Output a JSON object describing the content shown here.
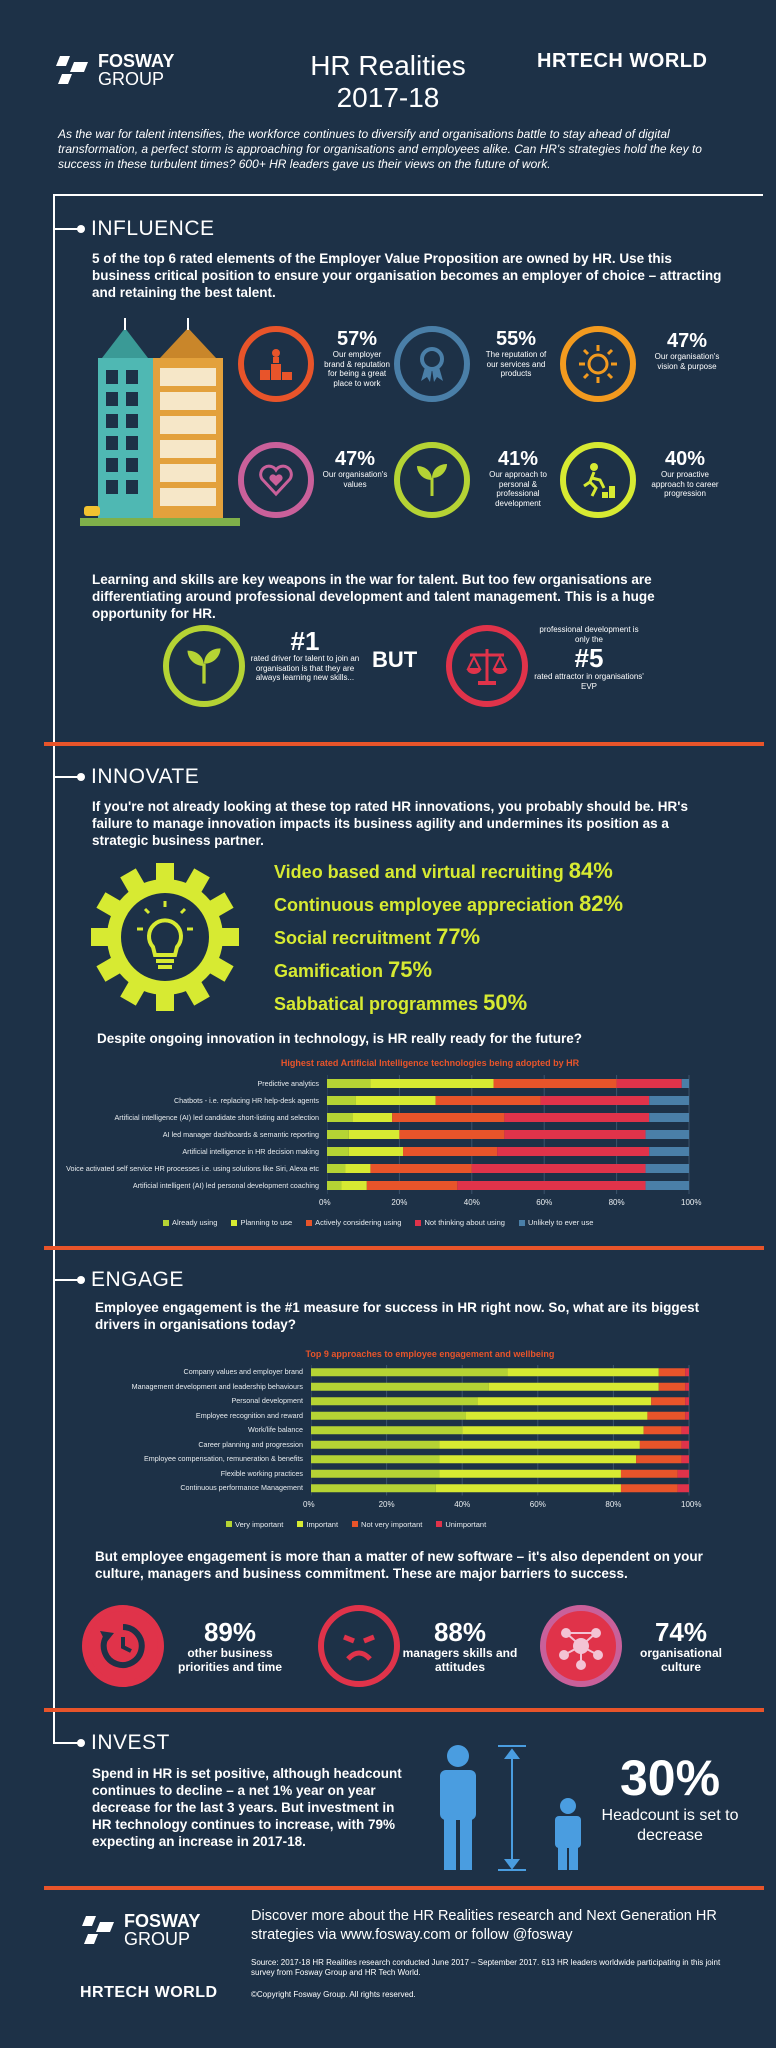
{
  "header": {
    "brand_name_line1": "FOSWAY",
    "brand_name_line2": "GROUP",
    "title_line1": "HR Realities",
    "title_line2": "2017-18",
    "partner_logo": "HRTECH WORLD",
    "intro": "As the war for talent intensifies, the workforce continues to diversify and organisations battle to stay ahead of digital transformation, a perfect storm is approaching for organisations and employees alike. Can HR's strategies hold the key to success in these turbulent times? 600+ HR leaders gave us their views on the future of work."
  },
  "influence": {
    "heading": "INFLUENCE",
    "para": "5 of the top 6 rated elements of the Employer Value Proposition are owned by HR. Use this business critical position to ensure your organisation becomes an employer of choice – attracting and retaining the best talent.",
    "stats": [
      {
        "pct": "57%",
        "desc": "Our employer brand & reputation for being a great place to work",
        "icon": "podium-icon",
        "color": "#e8542a"
      },
      {
        "pct": "55%",
        "desc": "The reputation of our services and products",
        "icon": "award-ribbon-icon",
        "color": "#4a7fa8"
      },
      {
        "pct": "47%",
        "desc": "Our organisation's vision & purpose",
        "icon": "sun-icon",
        "color": "#f29a1f"
      },
      {
        "pct": "47%",
        "desc": "Our organisation's values",
        "icon": "heart-icon",
        "color": "#c9609a"
      },
      {
        "pct": "41%",
        "desc": "Our approach to personal & professional development",
        "icon": "sprout-icon",
        "color": "#b5d334"
      },
      {
        "pct": "40%",
        "desc": "Our proactive approach to career progression",
        "icon": "runner-steps-icon",
        "color": "#d7ea32"
      }
    ],
    "para2": "Learning and skills are key weapons in the war for talent. But too few organisations are differentiating around professional development and talent management. This is a huge opportunity for HR.",
    "rank1": {
      "big": "#1",
      "desc": "rated driver for talent to join an organisation is that they are always learning new skills..."
    },
    "but": "BUT",
    "rank5": {
      "pre": "professional development is only the",
      "big": "#5",
      "desc": "rated attractor in organisations' EVP"
    }
  },
  "innovate": {
    "heading": "INNOVATE",
    "para": "If you're not already looking at these top rated HR innovations, you probably should be. HR's failure to manage innovation impacts its business agility and undermines its position as a strategic business partner.",
    "items": [
      {
        "label": "Video based and virtual recruiting",
        "pct": "84%"
      },
      {
        "label": "Continuous employee appreciation",
        "pct": "82%"
      },
      {
        "label": "Social recruitment",
        "pct": "77%"
      },
      {
        "label": "Gamification",
        "pct": "75%"
      },
      {
        "label": "Sabbatical programmes",
        "pct": "50%"
      }
    ],
    "question": "Despite ongoing innovation in technology, is HR really ready for the future?"
  },
  "engage": {
    "heading": "ENGAGE",
    "para": "Employee engagement is the #1 measure for success in HR right now. So, what are its biggest drivers in organisations today?",
    "para2": "But employee engagement is more than a matter of new software – it's also dependent on your culture, managers and business commitment. These are major barriers to success.",
    "barriers": [
      {
        "pct": "89%",
        "desc": "other business priorities and time",
        "icon": "clock-arrow-icon"
      },
      {
        "pct": "88%",
        "desc": "managers skills and attitudes",
        "icon": "sad-face-icon"
      },
      {
        "pct": "74%",
        "desc": "organisational culture",
        "icon": "network-icon"
      }
    ]
  },
  "invest": {
    "heading": "INVEST",
    "para": "Spend in HR is set positive, although headcount continues to decline – a net 1% year on year decrease for the last 3 years. But investment in HR technology continues to increase, with 79% expecting an increase in 2017-18.",
    "big_pct": "30%",
    "big_desc": "Headcount is set to decrease"
  },
  "footer": {
    "discover": "Discover more about the HR Realities research and Next Generation HR strategies via www.fosway.com or follow @fosway",
    "source": "Source: 2017-18 HR Realities research conducted June 2017 – September 2017. 613 HR leaders worldwide participating in this joint survey from Fosway Group and HR Tech World.",
    "copyright": "©Copyright Fosway Group. All rights reserved."
  },
  "colors": {
    "background": "#1d3147",
    "accent_orange": "#e8542a",
    "accent_lime": "#d7ea32",
    "accent_green": "#b5d334",
    "accent_red": "#e0334a",
    "accent_blue": "#4a9de0"
  },
  "chart_data": [
    {
      "type": "bar",
      "stacked": true,
      "orientation": "horizontal",
      "title": "Highest rated Artificial Intelligence technologies being adopted by HR",
      "categories": [
        "Predictive analytics",
        "Chatbots - i.e. replacing HR help-desk agents",
        "Artificial intelligence (AI) led candidate short-listing and selection",
        "AI led manager dashboards & semantic reporting",
        "Artificial intelligence in HR decision making",
        "Voice activated self service HR processes i.e. using solutions like Siri, Alexa etc",
        "Artificial intelligent (AI) led personal development coaching"
      ],
      "series": [
        {
          "name": "Already using",
          "color": "#b5d334",
          "values": [
            12,
            8,
            7,
            6,
            6,
            5,
            4
          ]
        },
        {
          "name": "Planning to use",
          "color": "#d7ea32",
          "values": [
            34,
            22,
            11,
            14,
            15,
            7,
            7
          ]
        },
        {
          "name": "Actively considering using",
          "color": "#e8542a",
          "values": [
            34,
            29,
            31,
            29,
            26,
            28,
            25
          ]
        },
        {
          "name": "Not thinking about using",
          "color": "#e0334a",
          "values": [
            18,
            30,
            40,
            39,
            42,
            48,
            52
          ]
        },
        {
          "name": "Unlikely to ever use",
          "color": "#4a7fa8",
          "values": [
            2,
            11,
            11,
            12,
            11,
            12,
            12
          ]
        }
      ],
      "xlim": [
        0,
        100
      ],
      "ticks": [
        "0%",
        "20%",
        "40%",
        "60%",
        "80%",
        "100%"
      ]
    },
    {
      "type": "bar",
      "stacked": true,
      "orientation": "horizontal",
      "title": "Top 9 approaches to employee engagement and wellbeing",
      "categories": [
        "Company values and employer brand",
        "Management development and leadership behaviours",
        "Personal development",
        "Employee recognition and reward",
        "Work/life balance",
        "Career planning and progression",
        "Employee compensation, remuneration & benefits",
        "Flexible working practices",
        "Continuous performance Management"
      ],
      "series": [
        {
          "name": "Very important",
          "color": "#b5d334",
          "values": [
            52,
            47,
            44,
            41,
            40,
            34,
            34,
            34,
            33
          ]
        },
        {
          "name": "Important",
          "color": "#d7ea32",
          "values": [
            40,
            45,
            46,
            48,
            48,
            53,
            52,
            48,
            49
          ]
        },
        {
          "name": "Not very important",
          "color": "#e8542a",
          "values": [
            7,
            7,
            9,
            10,
            10,
            11,
            12,
            15,
            15
          ]
        },
        {
          "name": "Unimportant",
          "color": "#e0334a",
          "values": [
            1,
            1,
            1,
            1,
            2,
            2,
            2,
            3,
            3
          ]
        }
      ],
      "xlim": [
        0,
        100
      ],
      "ticks": [
        "0%",
        "20%",
        "40%",
        "60%",
        "80%",
        "100%"
      ]
    }
  ]
}
